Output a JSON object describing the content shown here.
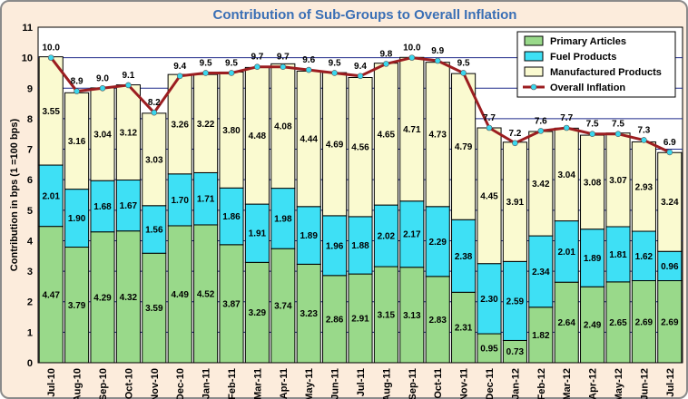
{
  "chart_data": {
    "type": "bar",
    "stacked": true,
    "title": "Contribution of Sub-Groups to Overall Inflation",
    "ylabel": "Contribution in bps (1 =100 bps)",
    "xlabel": "",
    "ylim": [
      0,
      11
    ],
    "yticks": [
      0,
      1,
      2,
      3,
      4,
      5,
      6,
      7,
      8,
      9,
      10,
      11
    ],
    "grid": "horizontal",
    "legend_position": "top-right",
    "categories": [
      "Jul-10",
      "Aug-10",
      "Sep-10",
      "Oct-10",
      "Nov-10",
      "Dec-10",
      "Jan-11",
      "Feb-11",
      "Mar-11",
      "Apr-11",
      "May-11",
      "Jun-11",
      "Jul-11",
      "Aug-11",
      "Sep-11",
      "Oct-11",
      "Nov-11",
      "Dec-11",
      "Jan-12",
      "Feb-12",
      "Mar-12",
      "Apr-12",
      "May-12",
      "Jun-12",
      "Jul-12"
    ],
    "series": [
      {
        "name": "Primary Articles",
        "color": "#99d98a",
        "values": [
          4.47,
          3.79,
          4.29,
          4.32,
          3.59,
          4.49,
          4.52,
          3.87,
          3.29,
          3.74,
          3.23,
          2.86,
          2.91,
          3.15,
          3.13,
          2.83,
          2.31,
          0.95,
          0.73,
          1.82,
          2.64,
          2.49,
          2.65,
          2.69,
          2.69
        ]
      },
      {
        "name": "Fuel Products",
        "color": "#3ee0f5",
        "values": [
          2.01,
          1.9,
          1.68,
          1.67,
          1.56,
          1.7,
          1.71,
          1.86,
          1.91,
          1.98,
          1.89,
          1.96,
          1.88,
          2.02,
          2.17,
          2.29,
          2.38,
          2.3,
          2.59,
          2.34,
          2.01,
          1.89,
          1.81,
          1.62,
          0.96
        ]
      },
      {
        "name": "Manufactured Products",
        "color": "#fafad0",
        "values": [
          3.55,
          3.16,
          3.04,
          3.12,
          3.03,
          3.26,
          3.22,
          3.8,
          4.48,
          4.08,
          4.44,
          4.69,
          4.56,
          4.65,
          4.71,
          4.73,
          4.79,
          4.45,
          3.91,
          3.42,
          3.04,
          3.08,
          3.07,
          2.93,
          3.24
        ]
      },
      {
        "name": "Overall Inflation",
        "type": "line",
        "color": "#9b1d20",
        "marker_color": "#3ad7ee",
        "values": [
          10.0,
          8.9,
          9.0,
          9.1,
          8.2,
          9.4,
          9.5,
          9.5,
          9.7,
          9.7,
          9.6,
          9.5,
          9.4,
          9.8,
          10.0,
          9.9,
          9.5,
          7.7,
          7.2,
          7.6,
          7.7,
          7.5,
          7.5,
          7.3,
          6.9
        ]
      }
    ]
  }
}
